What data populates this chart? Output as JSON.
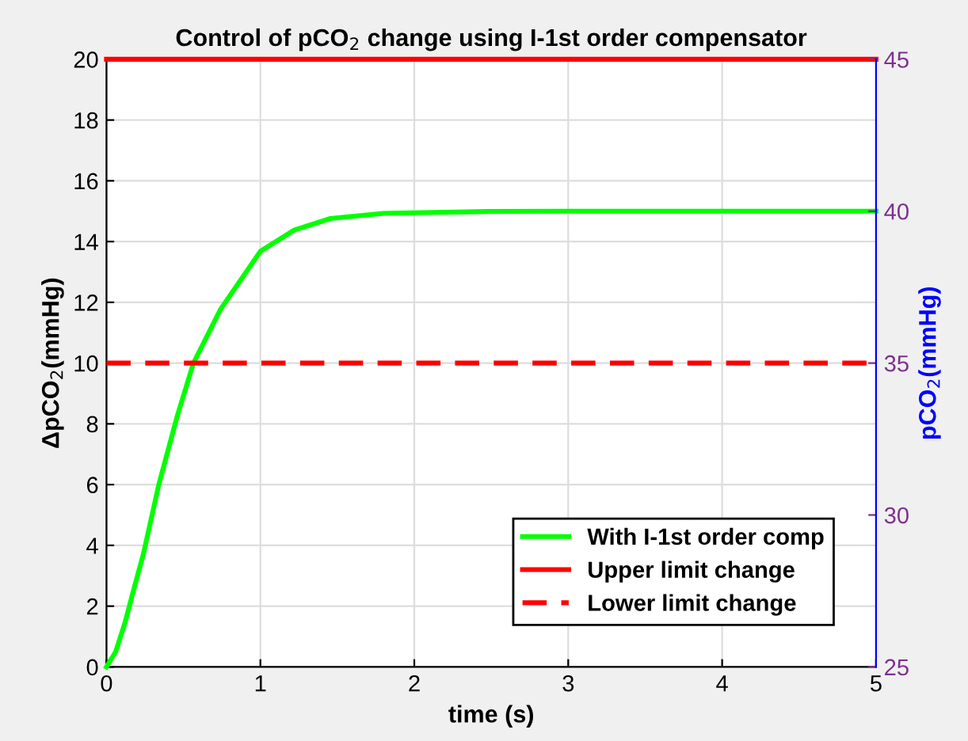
{
  "chart_data": {
    "type": "line",
    "title": "Control of pCO$_{2}$ change using I-1st order compensator",
    "xlabel": "time (s)",
    "ylabel": "ΔpCO$_{2}$(mmHg)",
    "y2label": "pCO$_{2}$(mmHg)",
    "series": [
      {
        "name": "With I-1st order comp",
        "color": "#00ff00",
        "line_style": "solid",
        "x": [
          0,
          0.06,
          0.12,
          0.18,
          0.24,
          0.34,
          0.46,
          0.565,
          0.74,
          1.0,
          1.22,
          1.455,
          1.8,
          2.48,
          3.0,
          4.0,
          5.0
        ],
        "values": [
          0,
          0.5,
          1.45,
          2.6,
          3.72,
          6.0,
          8.26,
          10.0,
          11.76,
          13.68,
          14.38,
          14.76,
          14.93,
          14.99,
          15.0,
          15.0,
          15.0
        ]
      },
      {
        "name": "Upper limit change",
        "color": "#ff0000",
        "line_style": "solid",
        "x": [
          0,
          5
        ],
        "values": [
          20,
          20
        ]
      },
      {
        "name": "Lower limit change",
        "color": "#ff0000",
        "line_style": "dashed",
        "x": [
          0,
          5
        ],
        "values": [
          10,
          10
        ]
      }
    ],
    "xlim": [
      0,
      5
    ],
    "xticks": [
      0,
      1,
      2,
      3,
      4,
      5
    ],
    "ylim": [
      0,
      20
    ],
    "yticks": [
      0,
      2,
      4,
      6,
      8,
      10,
      12,
      14,
      16,
      18,
      20
    ],
    "y2lim": [
      25,
      45
    ],
    "y2ticks": [
      25,
      30,
      35,
      40,
      45
    ],
    "grid": true,
    "legend": "bottom right"
  }
}
